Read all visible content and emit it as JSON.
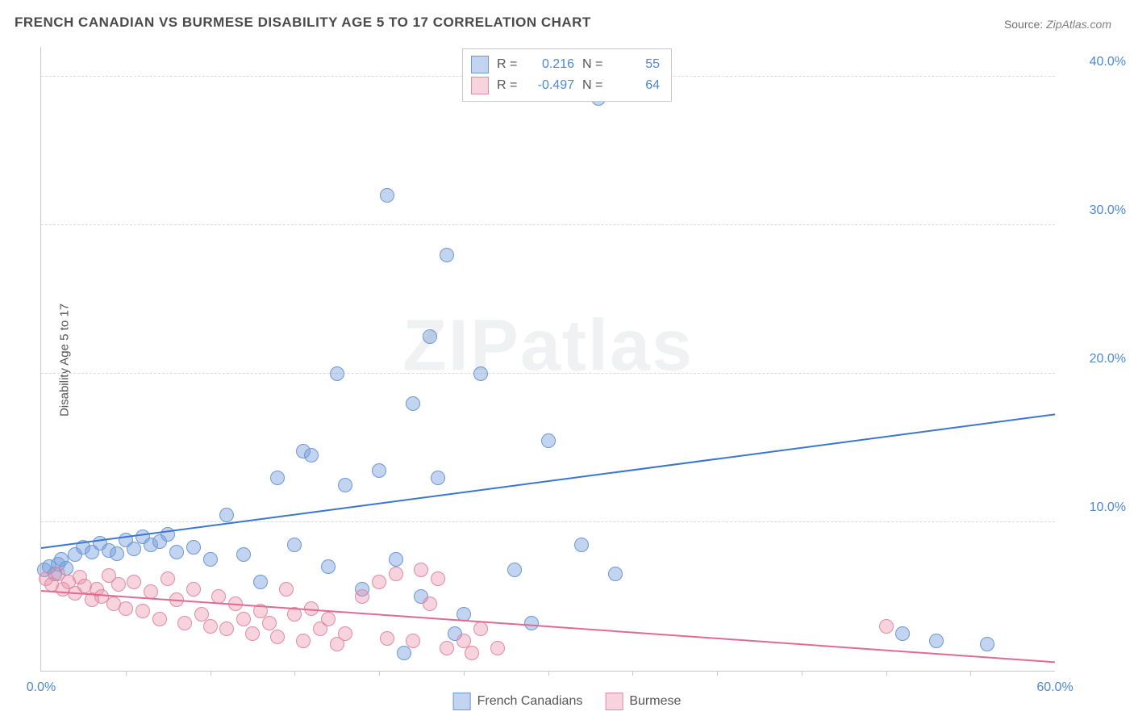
{
  "title": "FRENCH CANADIAN VS BURMESE DISABILITY AGE 5 TO 17 CORRELATION CHART",
  "source_label": "Source: ",
  "source_value": "ZipAtlas.com",
  "ylabel": "Disability Age 5 to 17",
  "watermark_a": "ZIP",
  "watermark_b": "atlas",
  "chart": {
    "xlim": [
      0,
      60
    ],
    "ylim": [
      0,
      42
    ],
    "xticks": [
      0,
      60
    ],
    "xtick_labels": [
      "0.0%",
      "60.0%"
    ],
    "xtick_minors": [
      5,
      10,
      15,
      20,
      25,
      30,
      35,
      40,
      45,
      50,
      55
    ],
    "yticks": [
      10,
      20,
      30,
      40
    ],
    "ytick_labels": [
      "10.0%",
      "20.0%",
      "30.0%",
      "40.0%"
    ],
    "grid_color": "#d8d8d8",
    "background": "#ffffff",
    "marker_radius": 9,
    "series": [
      {
        "name": "French Canadians",
        "color_fill": "rgba(120,160,220,0.45)",
        "color_stroke": "#6b98d6",
        "trend_color": "#3a76d0",
        "R": "0.216",
        "N": "55",
        "trend": {
          "x1": 0,
          "y1": 8.2,
          "x2": 60,
          "y2": 17.2
        },
        "points": [
          [
            0.2,
            6.8
          ],
          [
            0.5,
            7.0
          ],
          [
            0.8,
            6.5
          ],
          [
            1.0,
            7.2
          ],
          [
            1.2,
            7.5
          ],
          [
            1.5,
            6.9
          ],
          [
            2.0,
            7.8
          ],
          [
            2.5,
            8.3
          ],
          [
            3.0,
            8.0
          ],
          [
            3.5,
            8.6
          ],
          [
            4.0,
            8.1
          ],
          [
            4.5,
            7.9
          ],
          [
            5.0,
            8.8
          ],
          [
            5.5,
            8.2
          ],
          [
            6.0,
            9.0
          ],
          [
            6.5,
            8.5
          ],
          [
            7.0,
            8.7
          ],
          [
            7.5,
            9.2
          ],
          [
            8.0,
            8.0
          ],
          [
            9.0,
            8.3
          ],
          [
            10.0,
            7.5
          ],
          [
            11.0,
            10.5
          ],
          [
            12.0,
            7.8
          ],
          [
            13.0,
            6.0
          ],
          [
            14.0,
            13.0
          ],
          [
            15.0,
            8.5
          ],
          [
            15.5,
            14.8
          ],
          [
            16.0,
            14.5
          ],
          [
            17.0,
            7.0
          ],
          [
            17.5,
            20.0
          ],
          [
            18.0,
            12.5
          ],
          [
            19.0,
            5.5
          ],
          [
            20.0,
            13.5
          ],
          [
            20.5,
            32.0
          ],
          [
            21.0,
            7.5
          ],
          [
            21.5,
            1.2
          ],
          [
            22.0,
            18.0
          ],
          [
            22.5,
            5.0
          ],
          [
            23.0,
            22.5
          ],
          [
            23.5,
            13.0
          ],
          [
            24.0,
            28.0
          ],
          [
            24.5,
            2.5
          ],
          [
            25.0,
            3.8
          ],
          [
            26.0,
            20.0
          ],
          [
            28.0,
            6.8
          ],
          [
            29.0,
            3.2
          ],
          [
            30.0,
            15.5
          ],
          [
            32.0,
            8.5
          ],
          [
            33.0,
            38.5
          ],
          [
            34.0,
            6.5
          ],
          [
            51.0,
            2.5
          ],
          [
            53.0,
            2.0
          ],
          [
            56.0,
            1.8
          ]
        ]
      },
      {
        "name": "Burmese",
        "color_fill": "rgba(235,140,165,0.38)",
        "color_stroke": "#e08aa5",
        "trend_color": "#e06a92",
        "R": "-0.497",
        "N": "64",
        "trend": {
          "x1": 0,
          "y1": 5.3,
          "x2": 60,
          "y2": 0.5
        },
        "points": [
          [
            0.3,
            6.2
          ],
          [
            0.6,
            5.8
          ],
          [
            1.0,
            6.5
          ],
          [
            1.3,
            5.5
          ],
          [
            1.6,
            6.0
          ],
          [
            2.0,
            5.2
          ],
          [
            2.3,
            6.3
          ],
          [
            2.6,
            5.7
          ],
          [
            3.0,
            4.8
          ],
          [
            3.3,
            5.5
          ],
          [
            3.6,
            5.0
          ],
          [
            4.0,
            6.4
          ],
          [
            4.3,
            4.5
          ],
          [
            4.6,
            5.8
          ],
          [
            5.0,
            4.2
          ],
          [
            5.5,
            6.0
          ],
          [
            6.0,
            4.0
          ],
          [
            6.5,
            5.3
          ],
          [
            7.0,
            3.5
          ],
          [
            7.5,
            6.2
          ],
          [
            8.0,
            4.8
          ],
          [
            8.5,
            3.2
          ],
          [
            9.0,
            5.5
          ],
          [
            9.5,
            3.8
          ],
          [
            10.0,
            3.0
          ],
          [
            10.5,
            5.0
          ],
          [
            11.0,
            2.8
          ],
          [
            11.5,
            4.5
          ],
          [
            12.0,
            3.5
          ],
          [
            12.5,
            2.5
          ],
          [
            13.0,
            4.0
          ],
          [
            13.5,
            3.2
          ],
          [
            14.0,
            2.3
          ],
          [
            14.5,
            5.5
          ],
          [
            15.0,
            3.8
          ],
          [
            15.5,
            2.0
          ],
          [
            16.0,
            4.2
          ],
          [
            16.5,
            2.8
          ],
          [
            17.0,
            3.5
          ],
          [
            17.5,
            1.8
          ],
          [
            18.0,
            2.5
          ],
          [
            19.0,
            5.0
          ],
          [
            20.0,
            6.0
          ],
          [
            20.5,
            2.2
          ],
          [
            21.0,
            6.5
          ],
          [
            22.0,
            2.0
          ],
          [
            22.5,
            6.8
          ],
          [
            23.0,
            4.5
          ],
          [
            23.5,
            6.2
          ],
          [
            24.0,
            1.5
          ],
          [
            25.0,
            2.0
          ],
          [
            25.5,
            1.2
          ],
          [
            26.0,
            2.8
          ],
          [
            27.0,
            1.5
          ],
          [
            50.0,
            3.0
          ]
        ]
      }
    ]
  },
  "legend_top": {
    "R_label": "R =",
    "N_label": "N ="
  },
  "legend_bottom": {
    "series1": "French Canadians",
    "series2": "Burmese"
  }
}
